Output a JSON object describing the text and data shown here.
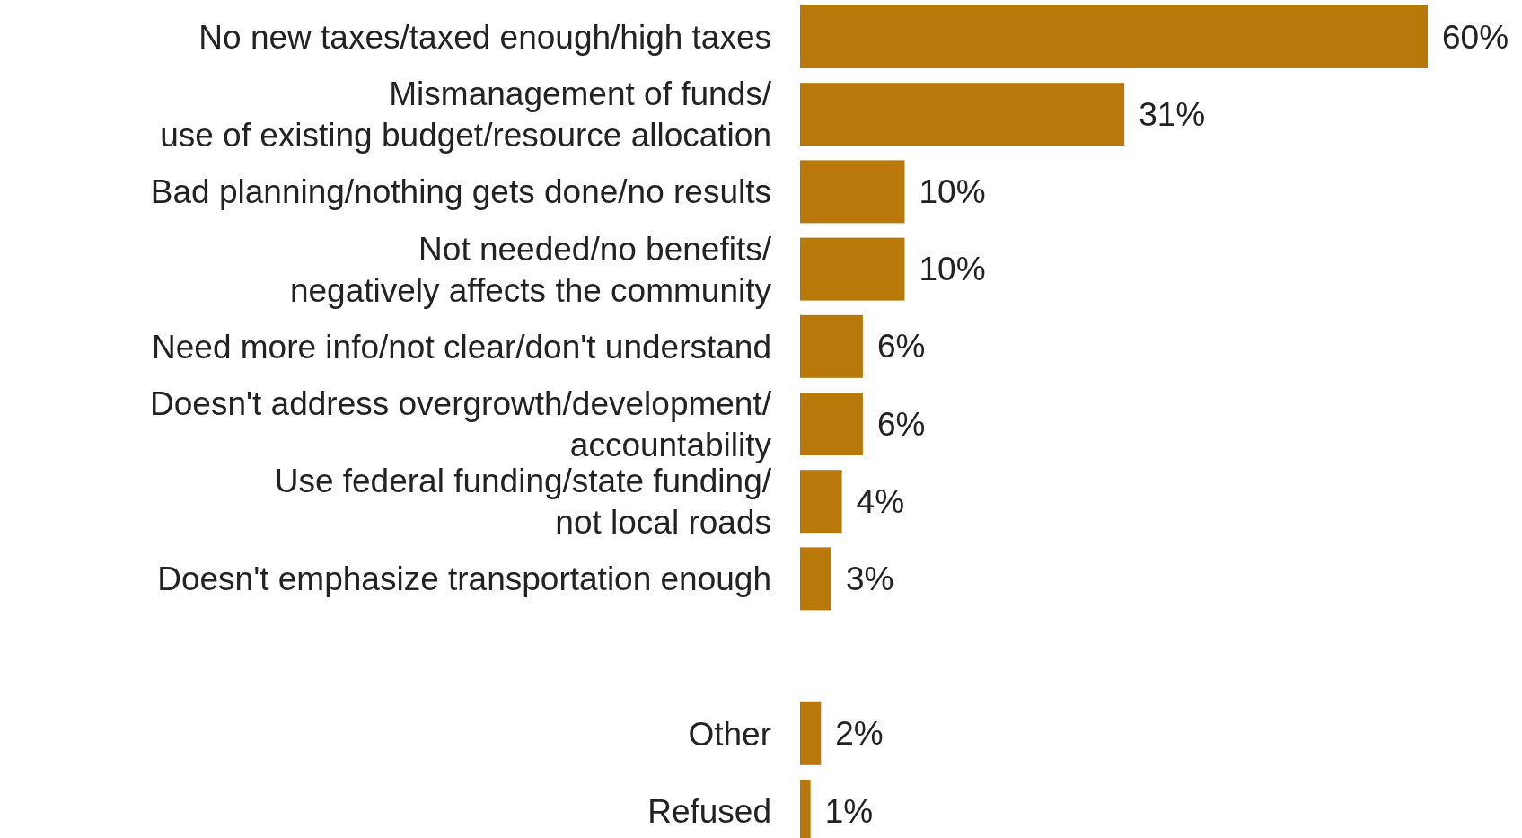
{
  "chart_data": {
    "type": "bar",
    "orientation": "horizontal",
    "categories": [
      "No new taxes/taxed enough/high taxes",
      "Mismanagement of funds/\nuse of existing budget/resource allocation",
      "Bad planning/nothing gets done/no results",
      "Not needed/no benefits/\nnegatively affects the community",
      "Need more info/not clear/don't understand",
      "Doesn't address overgrowth/development/\naccountability",
      "Use federal funding/state funding/\nnot local roads",
      "Doesn't emphasize transportation enough",
      null,
      "Other",
      "Refused"
    ],
    "values": [
      60,
      31,
      10,
      10,
      6,
      6,
      4,
      3,
      null,
      2,
      1
    ],
    "value_labels": [
      "60%",
      "31%",
      "10%",
      "10%",
      "6%",
      "6%",
      "4%",
      "3%",
      null,
      "2%",
      "1%"
    ],
    "color": "#b8790a"
  }
}
